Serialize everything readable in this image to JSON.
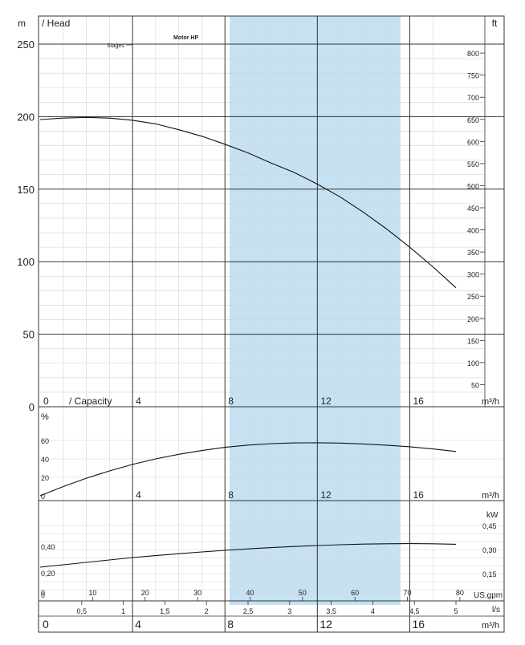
{
  "chart_data": [
    {
      "type": "line",
      "title": "",
      "ylabel": "m / Head",
      "ylabel_unit": "m",
      "ylabel_text": "/ Head",
      "y2label": "ft",
      "xlabel": "/ Capacity",
      "xlabel_unit": "m³/h",
      "xlim": [
        0,
        18
      ],
      "ylim": [
        0,
        250
      ],
      "y2lim": [
        0,
        820
      ],
      "yticks": [
        0,
        50,
        100,
        150,
        200,
        250
      ],
      "y2ticks": [
        50,
        100,
        150,
        200,
        250,
        300,
        350,
        400,
        450,
        500,
        550,
        600,
        650,
        700,
        750,
        800
      ],
      "xticks": [
        0,
        4,
        8,
        12,
        16
      ],
      "grid": true,
      "annotations": [
        "Stages",
        "Motor HP"
      ],
      "highlight_band_x": [
        8.2,
        15.6
      ],
      "series": [
        {
          "x": [
            0,
            1,
            2,
            3,
            4,
            5,
            6,
            7,
            8,
            9,
            10,
            11,
            12,
            13,
            14,
            15,
            16,
            17,
            18
          ],
          "y": [
            198,
            199,
            199.5,
            199,
            197.5,
            195,
            191,
            186.5,
            181,
            175,
            168,
            161.5,
            153.5,
            144.5,
            134,
            122.5,
            110,
            96.5,
            82
          ]
        }
      ]
    },
    {
      "type": "line",
      "ylabel": "%",
      "ylim": [
        0,
        80
      ],
      "yticks": [
        0,
        20,
        40,
        60
      ],
      "xticks": [
        4,
        8,
        12,
        16
      ],
      "xlabel_unit": "m³/h",
      "grid": true,
      "series": [
        {
          "x": [
            0,
            1,
            2,
            3,
            4,
            5,
            6,
            7,
            8,
            9,
            10,
            11,
            12,
            13,
            14,
            15,
            16,
            17,
            18
          ],
          "y": [
            0,
            10,
            19,
            27,
            34,
            40,
            45,
            49,
            52.5,
            55,
            56.5,
            57.3,
            57.5,
            57.1,
            56.2,
            54.9,
            53.1,
            50.8,
            48
          ]
        }
      ]
    },
    {
      "type": "line",
      "ylabel": "kW",
      "y2ticks": [
        "0,15",
        "0,30",
        "0,45"
      ],
      "yticks": [
        "0",
        "0,20",
        "0,40"
      ],
      "ylim": [
        0,
        0.5
      ],
      "grid": true,
      "series": [
        {
          "x": [
            0,
            1,
            2,
            3,
            4,
            5,
            6,
            7,
            8,
            9,
            10,
            11,
            12,
            13,
            14,
            15,
            16,
            17,
            18
          ],
          "y": [
            0.19,
            0.205,
            0.22,
            0.235,
            0.25,
            0.262,
            0.274,
            0.285,
            0.295,
            0.304,
            0.312,
            0.319,
            0.325,
            0.33,
            0.334,
            0.336,
            0.337,
            0.336,
            0.333
          ]
        }
      ]
    }
  ],
  "axes": {
    "usgpm_label": "US.gpm",
    "usgpm_ticks": [
      "0",
      "10",
      "20",
      "30",
      "40",
      "50",
      "60",
      "70",
      "80"
    ],
    "ls_label": "l/s",
    "ls_ticks": [
      "0,5",
      "1",
      "1,5",
      "2",
      "2,5",
      "3",
      "3,5",
      "4",
      "4,5",
      "5"
    ],
    "m3h_bottom_ticks": [
      "0",
      "4",
      "8",
      "12",
      "16"
    ],
    "m3h_label": "m³/h"
  }
}
